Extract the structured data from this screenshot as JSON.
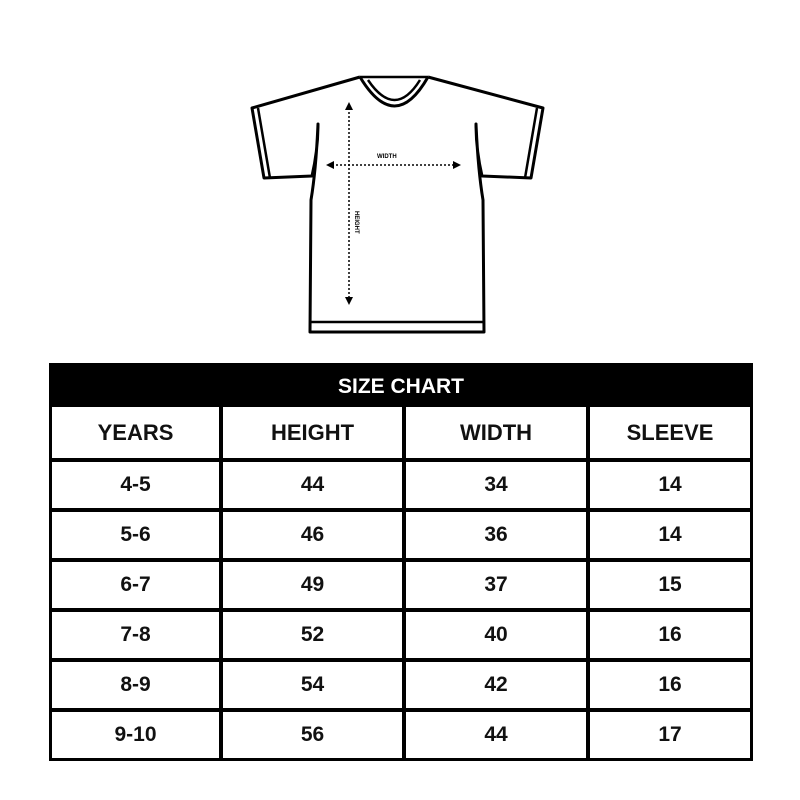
{
  "diagram": {
    "width_label": "WIDTH",
    "height_label": "HEIGHT"
  },
  "table": {
    "title": "SIZE CHART",
    "headers": [
      "YEARS",
      "HEIGHT",
      "WIDTH",
      "SLEEVE"
    ],
    "rows": [
      [
        "4-5",
        "44",
        "34",
        "14"
      ],
      [
        "5-6",
        "46",
        "36",
        "14"
      ],
      [
        "6-7",
        "49",
        "37",
        "15"
      ],
      [
        "7-8",
        "52",
        "40",
        "16"
      ],
      [
        "8-9",
        "54",
        "42",
        "16"
      ],
      [
        "9-10",
        "56",
        "44",
        "17"
      ]
    ]
  }
}
